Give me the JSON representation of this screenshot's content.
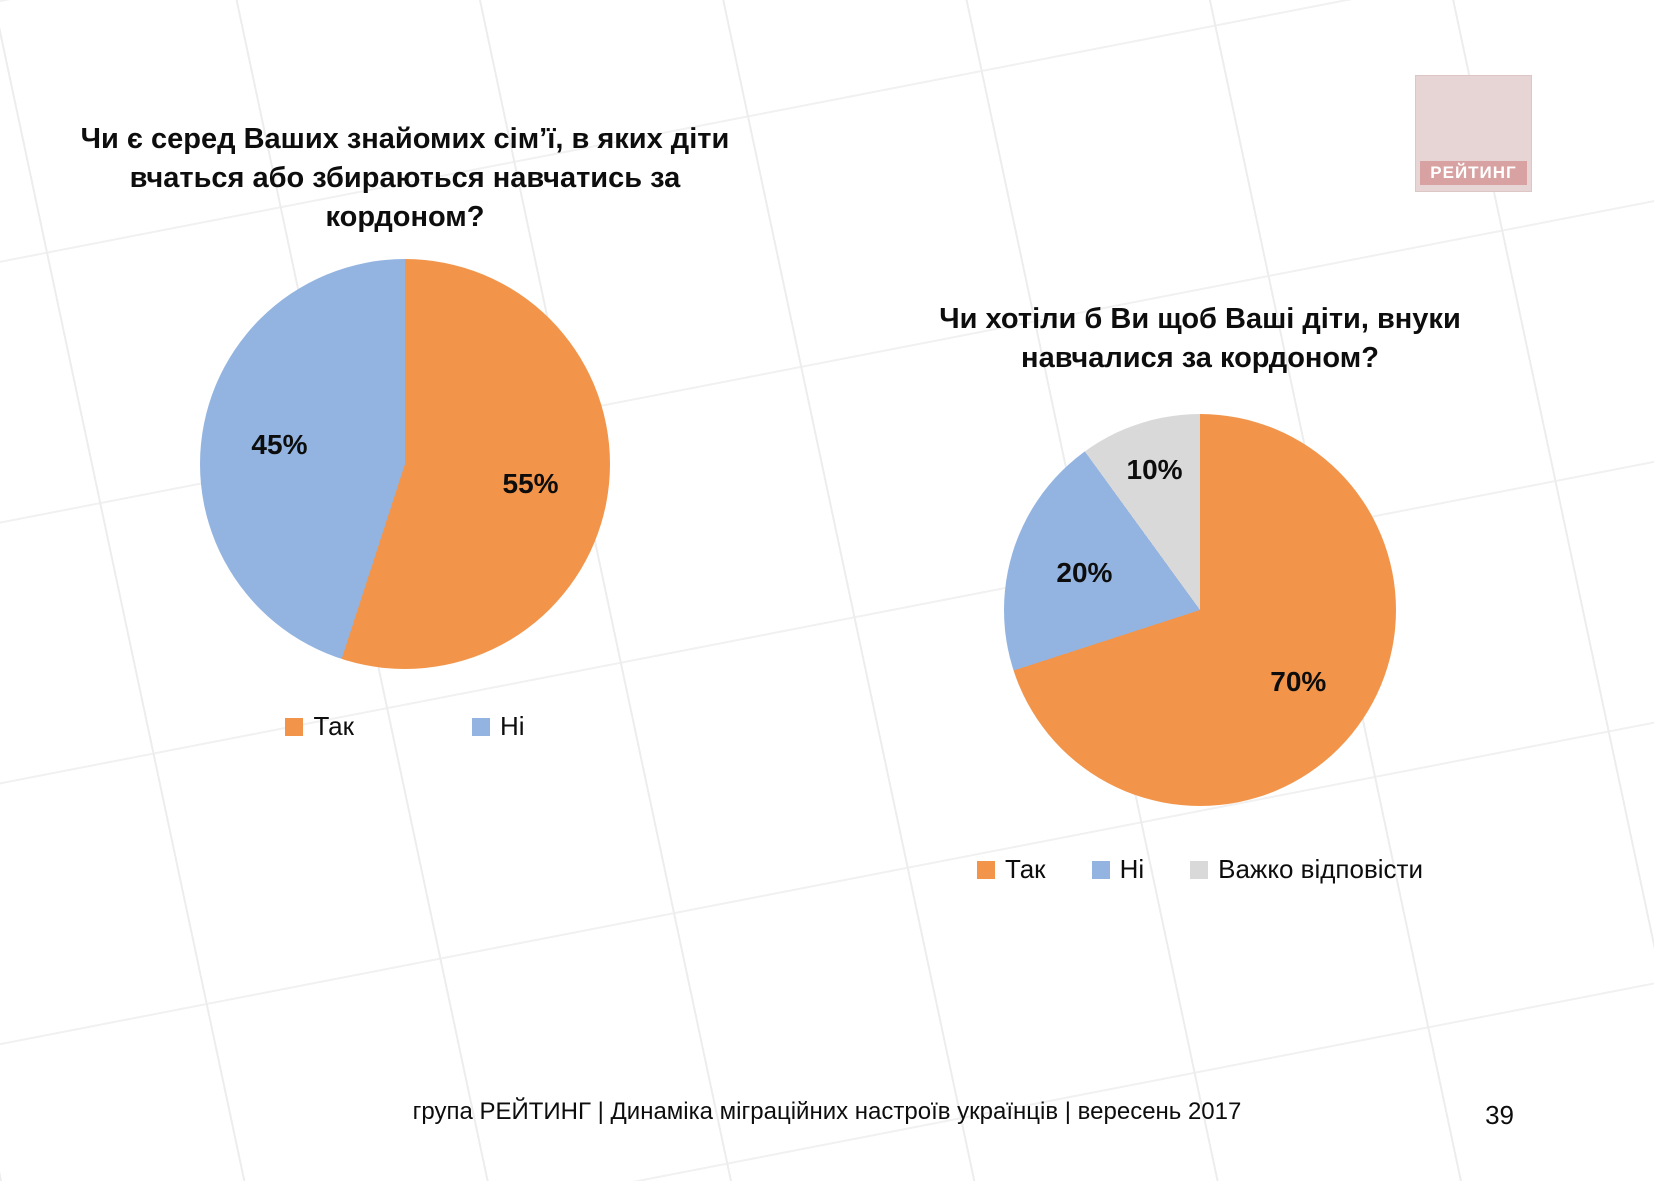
{
  "page": {
    "logo_text": "РЕЙТИНГ",
    "footer": "група РЕЙТИНГ  | Динаміка міграційних настроїв українців  |  вересень 2017",
    "page_number": "39"
  },
  "colors": {
    "orange": "#F2954B",
    "blue": "#93B4E1",
    "gray": "#D9D9D9"
  },
  "chart_data": [
    {
      "type": "pie",
      "title": "Чи є серед Ваших знайомих сім’ї, в яких діти вчаться або збираються навчатись за кордоном?",
      "labels": [
        "Так",
        "Ні"
      ],
      "values": [
        55,
        45
      ],
      "value_labels": [
        "55%",
        "45%"
      ],
      "colors": [
        "#F2954B",
        "#93B4E1"
      ],
      "start_angle_deg": 0,
      "legend_position": "bottom"
    },
    {
      "type": "pie",
      "title": "Чи хотіли б Ви щоб Ваші діти, внуки навчалися за кордоном?",
      "labels": [
        "Так",
        "Ні",
        "Важко відповісти"
      ],
      "values": [
        70,
        20,
        10
      ],
      "value_labels": [
        "70%",
        "20%",
        "10%"
      ],
      "colors": [
        "#F2954B",
        "#93B4E1",
        "#D9D9D9"
      ],
      "start_angle_deg": 0,
      "legend_position": "bottom"
    }
  ]
}
